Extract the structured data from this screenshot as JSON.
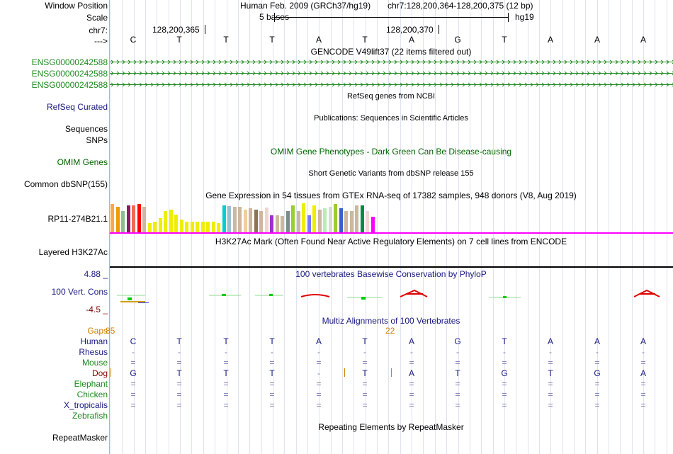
{
  "labels": {
    "window_position": "Window Position",
    "scale": "Scale",
    "chrom": "chr7:",
    "strand": "--->",
    "gene1": "ENSG00000242588",
    "gene2": "ENSG00000242588",
    "gene3": "ENSG00000242588",
    "refseq": "RefSeq Curated",
    "sequences": "Sequences",
    "snps": "SNPs",
    "omim": "OMIM Genes",
    "dbsnp": "Common dbSNP(155)",
    "gtex": "RP11-274B21.1",
    "h3k27": "Layered H3K27Ac",
    "cons_max": "4.88 _",
    "cons": "100 Vert. Cons",
    "cons_min": "-4.5 _",
    "gaps": "Gaps",
    "repeat": "RepeatMasker"
  },
  "header": {
    "assembly": "Human Feb. 2009 (GRCh37/hg19)",
    "position": "chr7:128,200,364-128,200,375 (12 bp)",
    "scale_text": "5 bases",
    "db": "hg19",
    "coord_left": "128,200,365",
    "coord_right": "128,200,370"
  },
  "titles": {
    "gencode": "GENCODE V49lift37 (22 items filtered out)",
    "refseq": "RefSeq genes from NCBI",
    "pubs": "Publications: Sequences in Scientific Articles",
    "omim": "OMIM Gene Phenotypes - Dark Green Can Be Disease-causing",
    "dbsnp": "Short Genetic Variants from dbSNP release 155",
    "gtex": "Gene Expression in 54 tissues from GTEx RNA-seq of 17382 samples, 948 donors (V8, Aug 2019)",
    "h3k27": "H3K27Ac Mark (Often Found Near Active Regulatory Elements) on 7 cell lines from ENCODE",
    "phylop": "100 vertebrates Basewise Conservation by PhyloP",
    "multiz": "Multiz Alignments of 100 Vertebrates",
    "repeat": "Repeating Elements by RepeatMasker"
  },
  "gap_counts": {
    "left": "85",
    "mid": "22"
  },
  "sequence": [
    "C",
    "T",
    "T",
    "T",
    "A",
    "T",
    "A",
    "G",
    "T",
    "A",
    "A",
    "A"
  ],
  "species": [
    {
      "name": "Human",
      "bases": [
        "C",
        "T",
        "T",
        "T",
        "A",
        "T",
        "A",
        "G",
        "T",
        "A",
        "A",
        "A"
      ]
    },
    {
      "name": "Rhesus",
      "bases": [
        "-",
        "-",
        "-",
        "-",
        "-",
        "-",
        "-",
        "-",
        "-",
        "-",
        "-",
        "-"
      ]
    },
    {
      "name": "Mouse",
      "bases": [
        "=",
        "=",
        "=",
        "=",
        "=",
        "=",
        "=",
        "=",
        "=",
        "=",
        "=",
        "="
      ]
    },
    {
      "name": "Dog",
      "bases": [
        "G",
        "T",
        "T",
        "T",
        "-",
        "T",
        "A",
        "T",
        "G",
        "T",
        "G",
        "A"
      ]
    },
    {
      "name": "Elephant",
      "bases": [
        "=",
        "=",
        "=",
        "=",
        "=",
        "=",
        "=",
        "=",
        "=",
        "=",
        "=",
        "="
      ]
    },
    {
      "name": "Chicken",
      "bases": [
        "=",
        "=",
        "=",
        "=",
        "=",
        "=",
        "=",
        "=",
        "=",
        "=",
        "=",
        "="
      ]
    },
    {
      "name": "X_tropicalis",
      "bases": [
        "=",
        "=",
        "=",
        "=",
        "=",
        "=",
        "=",
        "=",
        "=",
        "=",
        "=",
        "="
      ]
    },
    {
      "name": "Zebrafish",
      "bases": [
        "",
        "",
        "",
        "",
        "",
        "",
        "",
        "",
        "",
        "",
        "",
        ""
      ]
    }
  ],
  "colors": {
    "gene_green": "#1f8a1f",
    "navy": "#1a1a80",
    "maroon": "#800000",
    "orange": "#d08000",
    "magenta": "#ff00ff",
    "dark_green": "#006400",
    "dim_base": "#7a7ab0"
  },
  "gtex_colors": [
    "#ffa54f",
    "#ee9a00",
    "#8fbc8f",
    "#8b1c62",
    "#ee6a50",
    "#ff0000",
    "#cdb79e",
    "#eeee00",
    "#eeee00",
    "#eeee00",
    "#eeee00",
    "#eeee00",
    "#eeee00",
    "#eeee00",
    "#eeee00",
    "#eeee00",
    "#eeee00",
    "#eeee00",
    "#eeee00",
    "#eeee00",
    "#eeee00",
    "#00ced1",
    "#9ac0cd",
    "#cdb79e",
    "#cdb79e",
    "#eecfa1",
    "#cdb79e",
    "#8b7355",
    "#cdb79e",
    "#eed5d2",
    "#9a32cd",
    "#cdb79e",
    "#cdb79e",
    "#7a8b8b",
    "#9acd32",
    "#cdb79e",
    "#eeee00",
    "#7777ff",
    "#eeee00",
    "#cdb79e",
    "#b4eeb4",
    "#d9d9d9",
    "#9acd32",
    "#3a5fcd",
    "#cdb79e",
    "#cdb79e",
    "#cdb79e",
    "#008b45",
    "#eed5d2",
    "#ff00ff"
  ]
}
